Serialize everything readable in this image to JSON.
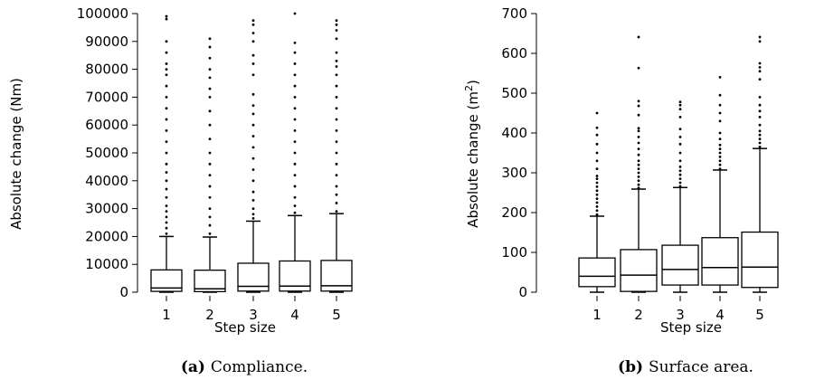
{
  "chart_data": [
    {
      "type": "boxplot",
      "caption_label": "(a)",
      "caption_text": "Compliance.",
      "xlabel": "Step size",
      "ylabel": "Absolute change (Nm)",
      "categories": [
        "1",
        "2",
        "3",
        "4",
        "5"
      ],
      "ylim": [
        0,
        100000
      ],
      "yticks": [
        0,
        10000,
        20000,
        30000,
        40000,
        50000,
        60000,
        70000,
        80000,
        90000,
        100000
      ],
      "boxes": [
        {
          "min": 0,
          "q1": 300,
          "median": 1500,
          "q3": 8000,
          "whisker_high": 20000
        },
        {
          "min": 0,
          "q1": 200,
          "median": 1200,
          "q3": 7900,
          "whisker_high": 19800
        },
        {
          "min": 0,
          "q1": 400,
          "median": 2100,
          "q3": 10400,
          "whisker_high": 25500
        },
        {
          "min": 0,
          "q1": 400,
          "median": 2200,
          "q3": 11200,
          "whisker_high": 27500
        },
        {
          "min": 0,
          "q1": 400,
          "median": 2300,
          "q3": 11400,
          "whisker_high": 28200
        }
      ],
      "outliers": [
        [
          21000,
          23000,
          25000,
          27000,
          29000,
          31000,
          34000,
          37000,
          40000,
          43000,
          46000,
          50000,
          54000,
          58000,
          62000,
          66000,
          70000,
          74000,
          78000,
          80000,
          82000,
          86000,
          90000,
          98000,
          99000
        ],
        [
          21000,
          24000,
          27000,
          30000,
          34000,
          38000,
          42000,
          46000,
          50000,
          55000,
          60000,
          65000,
          70000,
          73000,
          77000,
          80000,
          84000,
          88000,
          91000
        ],
        [
          26500,
          28000,
          30000,
          33000,
          36000,
          40000,
          44000,
          48000,
          52000,
          56000,
          60000,
          64000,
          67000,
          71000,
          78000,
          82000,
          85000,
          90000,
          93000,
          96000,
          97500
        ],
        [
          28500,
          31000,
          34000,
          38000,
          42000,
          46000,
          50000,
          54000,
          58000,
          62000,
          66000,
          70000,
          74000,
          78000,
          82000,
          86000,
          89500,
          100000
        ],
        [
          29000,
          32000,
          35000,
          38000,
          42000,
          46000,
          50000,
          54000,
          58000,
          62000,
          66000,
          70000,
          74000,
          78000,
          81000,
          83000,
          86000,
          91000,
          94000,
          96000,
          97500
        ]
      ]
    },
    {
      "type": "boxplot",
      "caption_label": "(b)",
      "caption_text": "Surface area.",
      "xlabel": "Step size",
      "ylabel_prefix": "Absolute change (m",
      "ylabel_sup": "2",
      "ylabel_suffix": ")",
      "categories": [
        "1",
        "2",
        "3",
        "4",
        "5"
      ],
      "ylim": [
        0,
        700
      ],
      "yticks": [
        0,
        100,
        200,
        300,
        400,
        500,
        600,
        700
      ],
      "boxes": [
        {
          "min": 0,
          "q1": 14,
          "median": 40,
          "q3": 86,
          "whisker_high": 191
        },
        {
          "min": 0,
          "q1": 2,
          "median": 43,
          "q3": 107,
          "whisker_high": 259
        },
        {
          "min": 0,
          "q1": 18,
          "median": 57,
          "q3": 118,
          "whisker_high": 263
        },
        {
          "min": 0,
          "q1": 18,
          "median": 62,
          "q3": 137,
          "whisker_high": 307
        },
        {
          "min": 0,
          "q1": 12,
          "median": 63,
          "q3": 151,
          "whisker_high": 361
        }
      ],
      "outliers": [
        [
          195,
          205,
          215,
          225,
          235,
          245,
          255,
          265,
          275,
          285,
          292,
          310,
          330,
          350,
          372,
          395,
          413,
          450
        ],
        [
          262,
          270,
          280,
          290,
          300,
          310,
          320,
          330,
          345,
          360,
          375,
          390,
          405,
          412,
          445,
          468,
          480,
          563,
          641
        ],
        [
          266,
          275,
          285,
          295,
          305,
          315,
          330,
          350,
          372,
          390,
          410,
          440,
          460,
          470,
          478
        ],
        [
          310,
          320,
          330,
          340,
          350,
          360,
          370,
          385,
          400,
          430,
          450,
          470,
          495,
          540
        ],
        [
          365,
          375,
          385,
          395,
          405,
          420,
          440,
          455,
          470,
          490,
          535,
          555,
          565,
          575,
          630,
          641
        ]
      ]
    }
  ]
}
